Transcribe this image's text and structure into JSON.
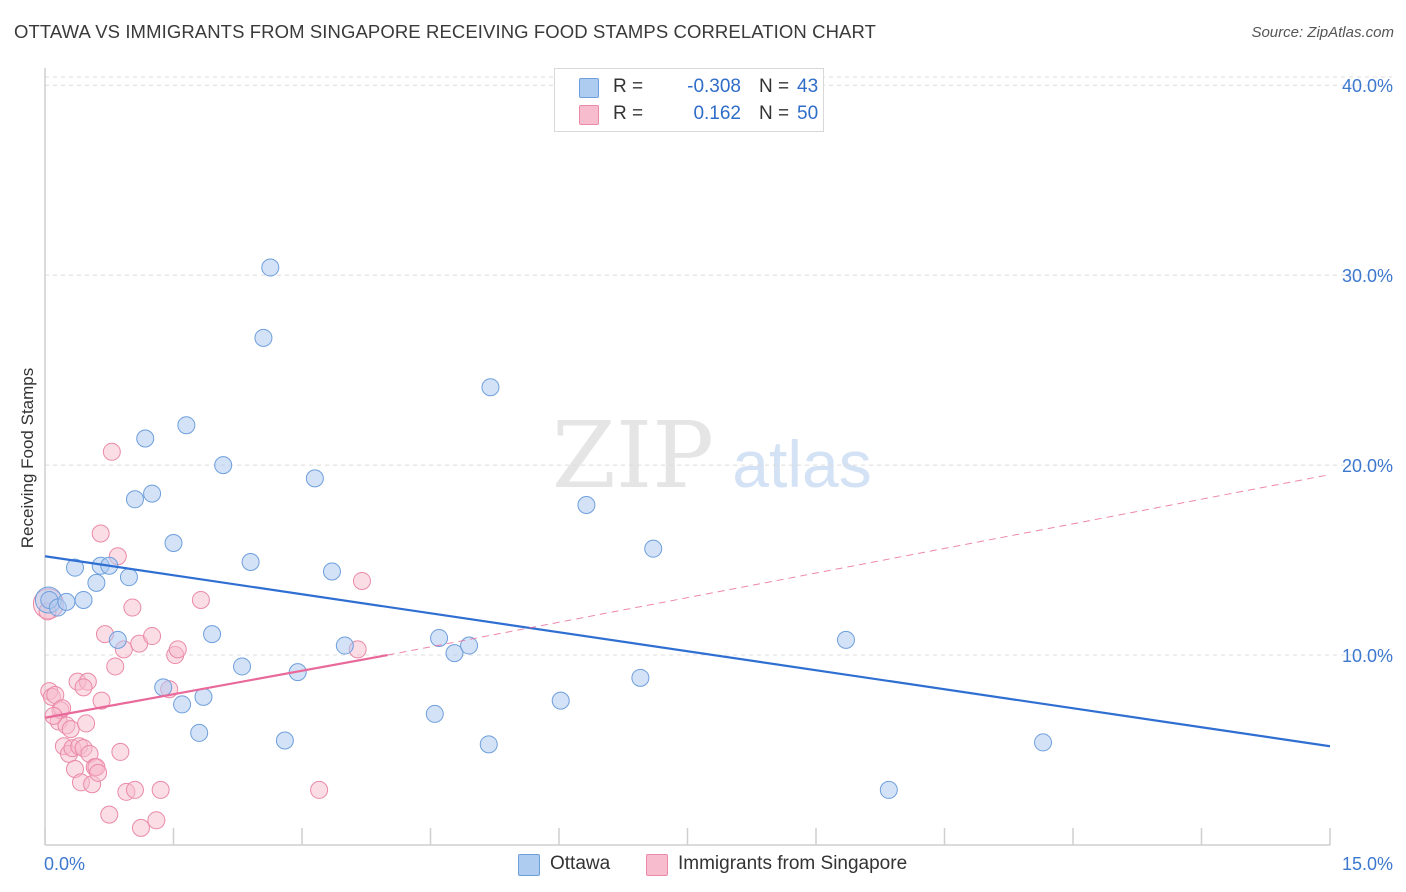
{
  "title": "OTTAWA VS IMMIGRANTS FROM SINGAPORE RECEIVING FOOD STAMPS CORRELATION CHART",
  "source": "Source: ZipAtlas.com",
  "watermark": {
    "zip": "ZIP",
    "atlas": "atlas"
  },
  "colors": {
    "blue_fill": "#aecbf0",
    "blue_stroke": "#6e9fdc",
    "blue_line": "#2f6fd2",
    "pink_fill": "#f7bccd",
    "pink_stroke": "#ea8aa8",
    "pink_line": "#e8699a",
    "tick_label": "#3d78cf",
    "grid": "#dcdcdc"
  },
  "legend": {
    "rows": [
      {
        "r_label": "R =",
        "r_value": "-0.308",
        "n_label": "N =",
        "n_value": "43",
        "color": "#aecbf0",
        "border": "#6e9fdc"
      },
      {
        "r_label": "R =",
        "r_value": "0.162",
        "n_label": "N =",
        "n_value": "50",
        "color": "#f7bccd",
        "border": "#ea8aa8"
      }
    ]
  },
  "chart_data": {
    "type": "scatter",
    "title": "OTTAWA VS IMMIGRANTS FROM SINGAPORE RECEIVING FOOD STAMPS CORRELATION CHART",
    "xlabel": "",
    "ylabel": "Receiving Food Stamps",
    "xlim": [
      0,
      15
    ],
    "ylim": [
      0,
      40.8
    ],
    "x_tick_labels": [
      "0.0%",
      "15.0%"
    ],
    "y_ticks": [
      10,
      20,
      30,
      40
    ],
    "y_tick_labels": [
      "10.0%",
      "20.0%",
      "30.0%",
      "40.0%"
    ],
    "grid": true,
    "legend_position": "top-center",
    "series": [
      {
        "name": "Ottawa",
        "color": "#aecbf0",
        "points": [
          [
            0.05,
            12.9
          ],
          [
            0.15,
            12.5
          ],
          [
            0.25,
            12.8
          ],
          [
            0.35,
            14.6
          ],
          [
            0.45,
            12.9
          ],
          [
            0.6,
            13.8
          ],
          [
            0.65,
            14.7
          ],
          [
            0.75,
            14.7
          ],
          [
            0.85,
            10.8
          ],
          [
            0.98,
            14.1
          ],
          [
            1.05,
            18.2
          ],
          [
            1.17,
            21.4
          ],
          [
            1.25,
            18.5
          ],
          [
            1.38,
            8.3
          ],
          [
            1.5,
            15.9
          ],
          [
            1.6,
            7.4
          ],
          [
            1.65,
            22.1
          ],
          [
            1.8,
            5.9
          ],
          [
            1.85,
            7.8
          ],
          [
            1.95,
            11.1
          ],
          [
            2.08,
            20.0
          ],
          [
            2.3,
            9.4
          ],
          [
            2.4,
            14.9
          ],
          [
            2.55,
            26.7
          ],
          [
            2.63,
            30.4
          ],
          [
            2.8,
            5.5
          ],
          [
            2.95,
            9.1
          ],
          [
            3.15,
            19.3
          ],
          [
            3.35,
            14.4
          ],
          [
            3.5,
            10.5
          ],
          [
            4.55,
            6.9
          ],
          [
            4.6,
            10.9
          ],
          [
            4.78,
            10.1
          ],
          [
            4.95,
            10.5
          ],
          [
            5.18,
            5.3
          ],
          [
            5.2,
            24.1
          ],
          [
            6.02,
            7.6
          ],
          [
            6.32,
            17.9
          ],
          [
            6.95,
            8.8
          ],
          [
            7.1,
            15.6
          ],
          [
            9.35,
            10.8
          ],
          [
            9.85,
            2.9
          ],
          [
            11.65,
            5.4
          ]
        ],
        "trend": {
          "x": [
            0,
            15
          ],
          "y": [
            15.2,
            5.2
          ]
        }
      },
      {
        "name": "Immigrants from Singapore",
        "color": "#f7bccd",
        "points": [
          [
            0.03,
            12.3
          ],
          [
            0.05,
            8.1
          ],
          [
            0.08,
            7.8
          ],
          [
            0.12,
            7.9
          ],
          [
            0.16,
            6.5
          ],
          [
            0.18,
            7.1
          ],
          [
            0.2,
            7.2
          ],
          [
            0.22,
            5.2
          ],
          [
            0.25,
            6.3
          ],
          [
            0.28,
            4.8
          ],
          [
            0.3,
            6.1
          ],
          [
            0.32,
            5.1
          ],
          [
            0.35,
            4.0
          ],
          [
            0.38,
            8.6
          ],
          [
            0.4,
            5.2
          ],
          [
            0.42,
            3.3
          ],
          [
            0.45,
            5.1
          ],
          [
            0.48,
            6.4
          ],
          [
            0.5,
            8.6
          ],
          [
            0.52,
            4.8
          ],
          [
            0.55,
            3.2
          ],
          [
            0.58,
            4.1
          ],
          [
            0.6,
            4.1
          ],
          [
            0.62,
            3.8
          ],
          [
            0.65,
            16.4
          ],
          [
            0.66,
            7.6
          ],
          [
            0.7,
            11.1
          ],
          [
            0.75,
            1.6
          ],
          [
            0.78,
            20.7
          ],
          [
            0.82,
            9.4
          ],
          [
            0.85,
            15.2
          ],
          [
            0.88,
            4.9
          ],
          [
            0.92,
            10.3
          ],
          [
            0.95,
            2.8
          ],
          [
            1.02,
            12.5
          ],
          [
            1.05,
            2.9
          ],
          [
            1.1,
            10.6
          ],
          [
            1.12,
            0.9
          ],
          [
            1.25,
            11.0
          ],
          [
            1.3,
            1.3
          ],
          [
            1.35,
            2.9
          ],
          [
            1.45,
            8.2
          ],
          [
            1.52,
            10.0
          ],
          [
            1.55,
            10.3
          ],
          [
            1.82,
            12.9
          ],
          [
            3.2,
            2.9
          ],
          [
            3.65,
            10.3
          ],
          [
            3.7,
            13.9
          ],
          [
            0.45,
            8.3
          ],
          [
            0.1,
            6.8
          ]
        ],
        "trend": {
          "x": [
            0,
            4.0
          ],
          "y": [
            6.7,
            10.0
          ]
        },
        "trend_extension": {
          "x": [
            4.0,
            15
          ],
          "y": [
            10.0,
            19.5
          ]
        }
      }
    ]
  }
}
